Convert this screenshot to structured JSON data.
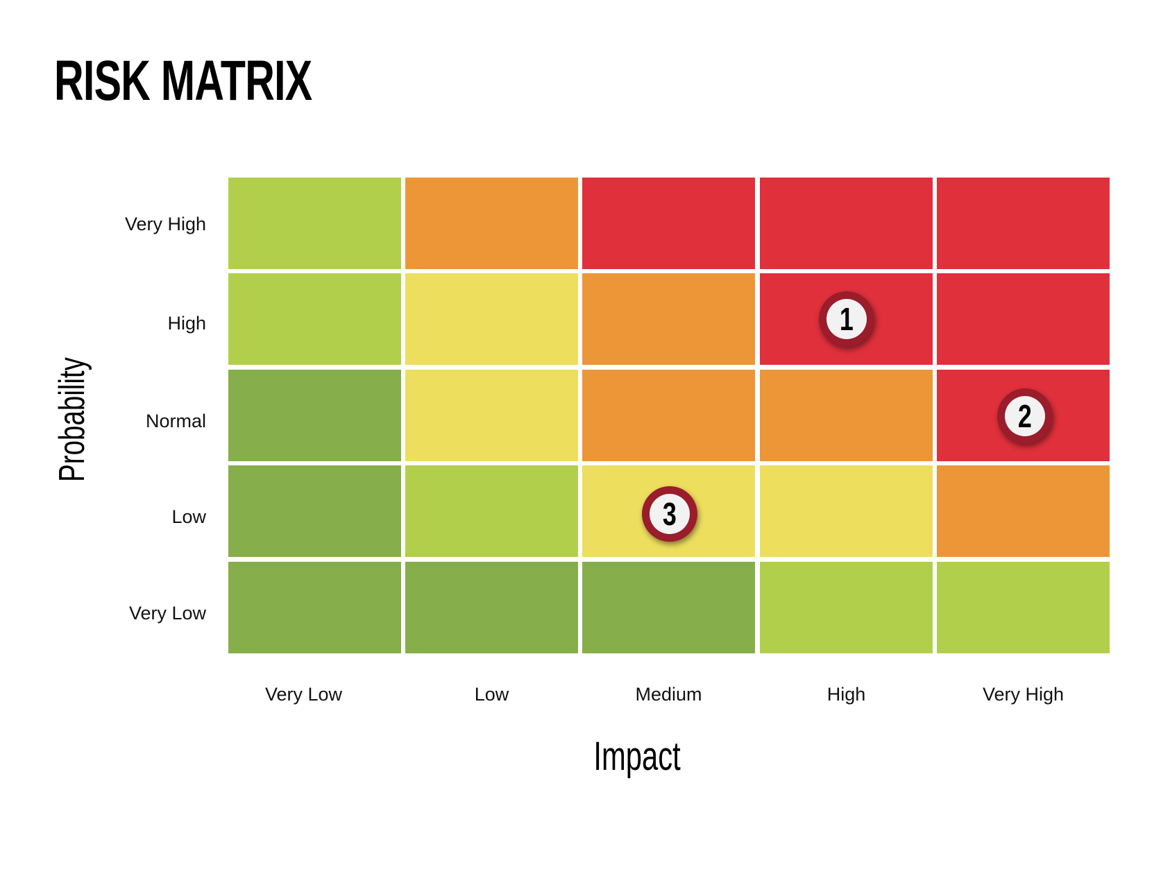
{
  "title": "RISK MATRIX",
  "axes": {
    "x_title": "Impact",
    "y_title": "Probability",
    "x_labels": [
      "Very Low",
      "Low",
      "Medium",
      "High",
      "Very High"
    ],
    "y_labels": [
      "Very High",
      "High",
      "Normal",
      "Low",
      "Very Low"
    ]
  },
  "colors": {
    "dark_green": "#86ae4a",
    "light_green": "#b2cf4c",
    "yellow": "#eede5e",
    "orange": "#ec9638",
    "red": "#df303b",
    "marker_ring": "#9b1c2b",
    "marker_fill": "#f2f2f2"
  },
  "grid": [
    [
      "light_green",
      "orange",
      "red",
      "red",
      "red"
    ],
    [
      "light_green",
      "yellow",
      "orange",
      "red",
      "red"
    ],
    [
      "dark_green",
      "yellow",
      "orange",
      "orange",
      "red"
    ],
    [
      "dark_green",
      "light_green",
      "yellow",
      "yellow",
      "orange"
    ],
    [
      "dark_green",
      "dark_green",
      "dark_green",
      "light_green",
      "light_green"
    ]
  ],
  "markers": [
    {
      "label": "1",
      "impact": "High",
      "probability": "High"
    },
    {
      "label": "2",
      "impact": "Very High",
      "probability": "Normal"
    },
    {
      "label": "3",
      "impact": "Medium",
      "probability": "Low"
    }
  ],
  "chart_data": {
    "type": "heatmap",
    "title": "RISK MATRIX",
    "xlabel": "Impact",
    "ylabel": "Probability",
    "x_categories": [
      "Very Low",
      "Low",
      "Medium",
      "High",
      "Very High"
    ],
    "y_categories": [
      "Very High",
      "High",
      "Normal",
      "Low",
      "Very Low"
    ],
    "cell_levels": [
      [
        "light_green",
        "orange",
        "red",
        "red",
        "red"
      ],
      [
        "light_green",
        "yellow",
        "orange",
        "red",
        "red"
      ],
      [
        "dark_green",
        "yellow",
        "orange",
        "orange",
        "red"
      ],
      [
        "dark_green",
        "light_green",
        "yellow",
        "yellow",
        "orange"
      ],
      [
        "dark_green",
        "dark_green",
        "dark_green",
        "light_green",
        "light_green"
      ]
    ],
    "points": [
      {
        "label": "1",
        "x": "High",
        "y": "High"
      },
      {
        "label": "2",
        "x": "Very High",
        "y": "Normal"
      },
      {
        "label": "3",
        "x": "Medium",
        "y": "Low"
      }
    ],
    "grid": false,
    "legend": "none"
  }
}
